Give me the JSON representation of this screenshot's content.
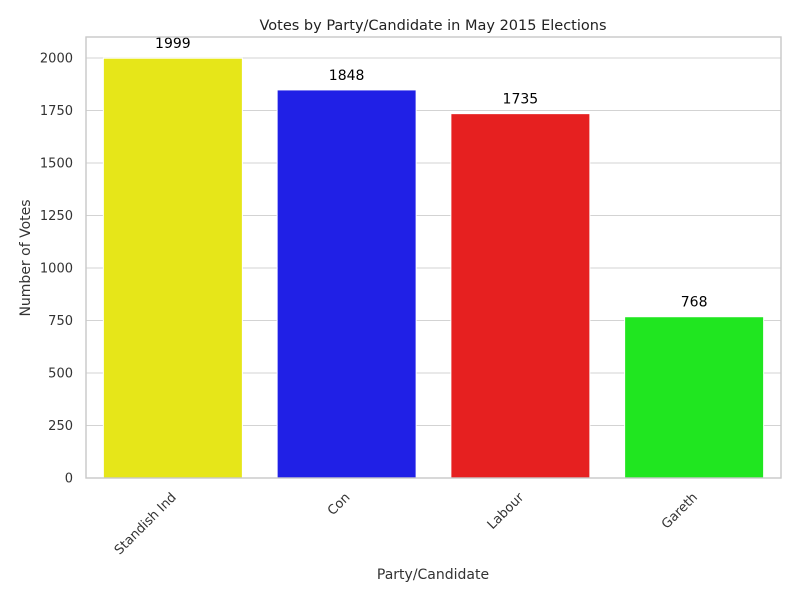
{
  "chart_data": {
    "type": "bar",
    "title": "Votes by Party/Candidate in May 2015 Elections",
    "xlabel": "Party/Candidate",
    "ylabel": "Number of Votes",
    "categories": [
      "Standish Ind",
      "Con",
      "Labour",
      "Gareth"
    ],
    "values": [
      1999,
      1848,
      1735,
      768
    ],
    "colors": [
      "#e6e619",
      "#2020e6",
      "#e62020",
      "#20e620"
    ],
    "ylim": [
      0,
      2100
    ],
    "yticks": [
      0,
      250,
      500,
      750,
      1000,
      1250,
      1500,
      1750,
      2000
    ],
    "grid": true,
    "legend": "none",
    "data_labels": [
      "1999",
      "1848",
      "1735",
      "768"
    ]
  }
}
